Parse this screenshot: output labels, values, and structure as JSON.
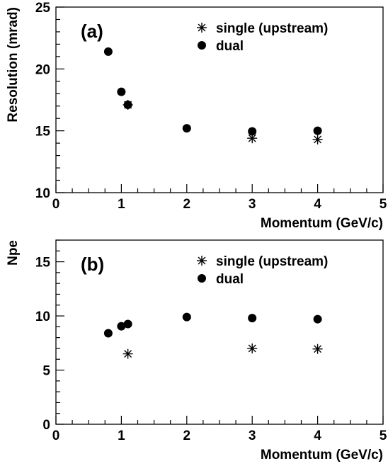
{
  "chart_data": [
    {
      "type": "scatter",
      "panel_label": "(a)",
      "xlabel": "Momentum (GeV/c)",
      "ylabel": "Resolution (mrad)",
      "xlim": [
        0,
        5
      ],
      "ylim": [
        10,
        25
      ],
      "x_ticks": [
        "0",
        "1",
        "2",
        "3",
        "4",
        "5"
      ],
      "y_ticks": [
        "10",
        "15",
        "20",
        "25"
      ],
      "legend_position": "top-right",
      "series": [
        {
          "name": "single (upstream)",
          "marker": "asterisk",
          "x": [
            1.1,
            3,
            4
          ],
          "y": [
            17.1,
            14.4,
            14.3
          ]
        },
        {
          "name": "dual",
          "marker": "filled-circle",
          "x": [
            0.8,
            1.0,
            1.1,
            2,
            3,
            4
          ],
          "y": [
            21.4,
            18.15,
            17.1,
            15.2,
            14.95,
            15.0
          ]
        }
      ]
    },
    {
      "type": "scatter",
      "panel_label": "(b)",
      "xlabel": "Momentum (GeV/c)",
      "ylabel": "Npe",
      "xlim": [
        0,
        5
      ],
      "ylim": [
        0,
        17
      ],
      "x_ticks": [
        "0",
        "1",
        "2",
        "3",
        "4",
        "5"
      ],
      "y_ticks": [
        "0",
        "5",
        "10",
        "15"
      ],
      "legend_position": "top-right",
      "series": [
        {
          "name": "single (upstream)",
          "marker": "asterisk",
          "x": [
            1.1,
            3,
            4
          ],
          "y": [
            6.5,
            7.0,
            6.95
          ]
        },
        {
          "name": "dual",
          "marker": "filled-circle",
          "x": [
            0.8,
            1.0,
            1.1,
            2,
            3,
            4
          ],
          "y": [
            8.4,
            9.05,
            9.25,
            9.9,
            9.8,
            9.7
          ]
        }
      ]
    }
  ]
}
